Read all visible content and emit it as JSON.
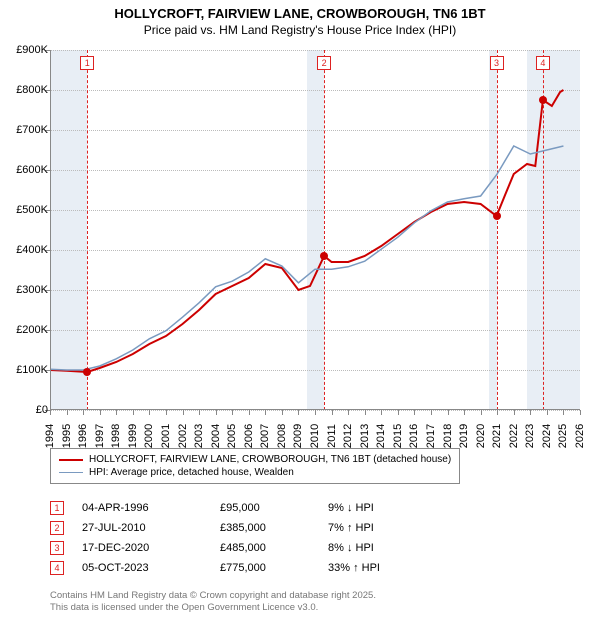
{
  "title": {
    "line1": "HOLLYCROFT, FAIRVIEW LANE, CROWBOROUGH, TN6 1BT",
    "line2": "Price paid vs. HM Land Registry's House Price Index (HPI)"
  },
  "chart": {
    "type": "line",
    "background_color": "#ffffff",
    "grid_color": "#bbbbbb",
    "shade_color": "#e8eef5",
    "x": {
      "min": 1994,
      "max": 2026,
      "ticks": [
        1994,
        1995,
        1996,
        1997,
        1998,
        1999,
        2000,
        2001,
        2002,
        2003,
        2004,
        2005,
        2006,
        2007,
        2008,
        2009,
        2010,
        2011,
        2012,
        2013,
        2014,
        2015,
        2016,
        2017,
        2018,
        2019,
        2020,
        2021,
        2022,
        2023,
        2024,
        2025,
        2026
      ]
    },
    "y": {
      "min": 0,
      "max": 900,
      "ticks": [
        0,
        100,
        200,
        300,
        400,
        500,
        600,
        700,
        800,
        900
      ],
      "labels": [
        "£0",
        "£100K",
        "£200K",
        "£300K",
        "£400K",
        "£500K",
        "£600K",
        "£700K",
        "£800K",
        "£900K"
      ]
    },
    "shaded_bands": [
      {
        "from": 1994,
        "to": 1996.25
      },
      {
        "from": 2009.5,
        "to": 2010.55
      },
      {
        "from": 2020.5,
        "to": 2020.96
      },
      {
        "from": 2022.8,
        "to": 2026
      }
    ],
    "event_lines": [
      {
        "n": "1",
        "x": 1996.25
      },
      {
        "n": "2",
        "x": 2010.55
      },
      {
        "n": "3",
        "x": 2020.96
      },
      {
        "n": "4",
        "x": 2023.76
      }
    ],
    "series": [
      {
        "name": "price_paid",
        "color": "#cc0000",
        "width": 2,
        "points": [
          [
            1994,
            100
          ],
          [
            1995,
            98
          ],
          [
            1996.25,
            95
          ],
          [
            1997,
            105
          ],
          [
            1998,
            120
          ],
          [
            1999,
            140
          ],
          [
            2000,
            165
          ],
          [
            2001,
            185
          ],
          [
            2002,
            215
          ],
          [
            2003,
            250
          ],
          [
            2004,
            290
          ],
          [
            2005,
            310
          ],
          [
            2006,
            330
          ],
          [
            2007,
            365
          ],
          [
            2008,
            355
          ],
          [
            2009,
            300
          ],
          [
            2009.7,
            310
          ],
          [
            2010.55,
            385
          ],
          [
            2011,
            370
          ],
          [
            2012,
            370
          ],
          [
            2013,
            385
          ],
          [
            2014,
            410
          ],
          [
            2015,
            440
          ],
          [
            2016,
            470
          ],
          [
            2017,
            495
          ],
          [
            2018,
            515
          ],
          [
            2019,
            520
          ],
          [
            2020,
            515
          ],
          [
            2020.96,
            485
          ],
          [
            2021.5,
            540
          ],
          [
            2022,
            590
          ],
          [
            2022.8,
            615
          ],
          [
            2023.3,
            610
          ],
          [
            2023.76,
            775
          ],
          [
            2024.3,
            760
          ],
          [
            2024.8,
            795
          ],
          [
            2025,
            800
          ]
        ],
        "markers": [
          {
            "x": 1996.25,
            "y": 95
          },
          {
            "x": 2010.55,
            "y": 385
          },
          {
            "x": 2020.96,
            "y": 485
          },
          {
            "x": 2023.76,
            "y": 775
          }
        ]
      },
      {
        "name": "hpi",
        "color": "#7a9ac0",
        "width": 1.5,
        "points": [
          [
            1994,
            102
          ],
          [
            1995,
            100
          ],
          [
            1996,
            100
          ],
          [
            1997,
            110
          ],
          [
            1998,
            128
          ],
          [
            1999,
            150
          ],
          [
            2000,
            178
          ],
          [
            2001,
            198
          ],
          [
            2002,
            232
          ],
          [
            2003,
            268
          ],
          [
            2004,
            308
          ],
          [
            2005,
            322
          ],
          [
            2006,
            345
          ],
          [
            2007,
            378
          ],
          [
            2008,
            360
          ],
          [
            2009,
            318
          ],
          [
            2010,
            352
          ],
          [
            2011,
            352
          ],
          [
            2012,
            358
          ],
          [
            2013,
            372
          ],
          [
            2014,
            402
          ],
          [
            2015,
            432
          ],
          [
            2016,
            468
          ],
          [
            2017,
            498
          ],
          [
            2018,
            520
          ],
          [
            2019,
            528
          ],
          [
            2020,
            535
          ],
          [
            2021,
            590
          ],
          [
            2022,
            660
          ],
          [
            2023,
            640
          ],
          [
            2024,
            650
          ],
          [
            2025,
            660
          ]
        ]
      }
    ]
  },
  "legend": {
    "items": [
      {
        "color": "#cc0000",
        "width": 2,
        "label": "HOLLYCROFT, FAIRVIEW LANE, CROWBOROUGH, TN6 1BT (detached house)"
      },
      {
        "color": "#7a9ac0",
        "width": 1.5,
        "label": "HPI: Average price, detached house, Wealden"
      }
    ]
  },
  "events_table": {
    "rows": [
      {
        "n": "1",
        "date": "04-APR-1996",
        "price": "£95,000",
        "diff": "9% ↓ HPI"
      },
      {
        "n": "2",
        "date": "27-JUL-2010",
        "price": "£385,000",
        "diff": "7% ↑ HPI"
      },
      {
        "n": "3",
        "date": "17-DEC-2020",
        "price": "£485,000",
        "diff": "8% ↓ HPI"
      },
      {
        "n": "4",
        "date": "05-OCT-2023",
        "price": "£775,000",
        "diff": "33% ↑ HPI"
      }
    ]
  },
  "footer": {
    "line1": "Contains HM Land Registry data © Crown copyright and database right 2025.",
    "line2": "This data is licensed under the Open Government Licence v3.0."
  }
}
